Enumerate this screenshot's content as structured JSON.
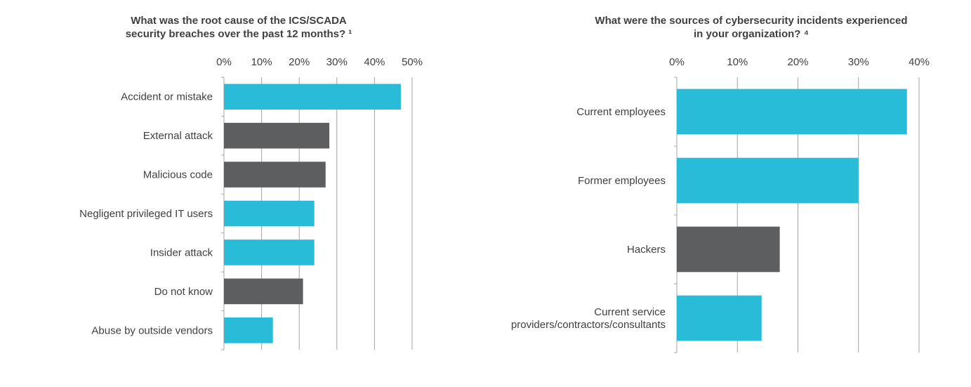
{
  "chart_data": [
    {
      "type": "bar",
      "orientation": "horizontal",
      "title": "What was the root cause of the ICS/SCADA security breaches over the past 12 months? ¹",
      "title_lines": [
        "What was the root cause of the ICS/SCADA",
        "security breaches over the past 12 months? ¹"
      ],
      "categories": [
        "Accident or mistake",
        "External attack",
        "Malicious code",
        "Negligent privileged IT users",
        "Insider attack",
        "Do not know",
        "Abuse by outside vendors"
      ],
      "values": [
        47,
        28,
        27,
        24,
        24,
        21,
        13
      ],
      "bar_colors": [
        "#29bcd8",
        "#5d5e60",
        "#5d5e60",
        "#29bcd8",
        "#29bcd8",
        "#5d5e60",
        "#29bcd8"
      ],
      "xlim": [
        0,
        50
      ],
      "ticks": [
        "0%",
        "10%",
        "20%",
        "30%",
        "40%",
        "50%"
      ],
      "tick_values": [
        0,
        10,
        20,
        30,
        40,
        50
      ],
      "grid": true,
      "axis_position": "top"
    },
    {
      "type": "bar",
      "orientation": "horizontal",
      "title": "What were the sources of cybersecurity incidents experienced in your organization? ⁴",
      "title_lines": [
        "What were the sources of cybersecurity incidents experienced",
        "in your organization? ⁴"
      ],
      "categories": [
        "Current employees",
        "Former employees",
        "Hackers",
        "Current service providers/contractors/consultants"
      ],
      "category_lines": [
        [
          "Current employees"
        ],
        [
          "Former employees"
        ],
        [
          "Hackers"
        ],
        [
          "Current service",
          "providers/contractors/consultants"
        ]
      ],
      "values": [
        38,
        30,
        17,
        14
      ],
      "bar_colors": [
        "#29bcd8",
        "#29bcd8",
        "#5d5e60",
        "#29bcd8"
      ],
      "xlim": [
        0,
        40
      ],
      "ticks": [
        "0%",
        "10%",
        "20%",
        "30%",
        "40%"
      ],
      "tick_values": [
        0,
        10,
        20,
        30,
        40
      ],
      "grid": true,
      "axis_position": "top"
    }
  ]
}
